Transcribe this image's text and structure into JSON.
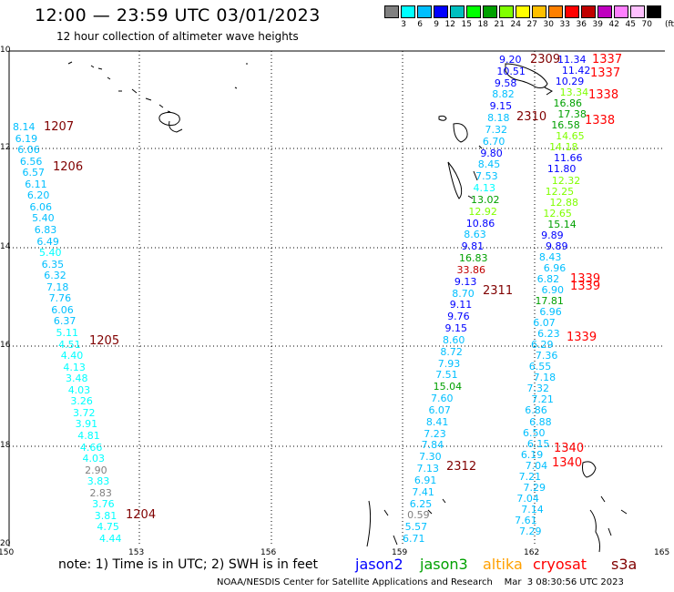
{
  "header": {
    "title": "12:00 — 23:59 UTC 03/01/2023",
    "subtitle": "12 hour collection of altimeter wave heights"
  },
  "color_scale": {
    "labels": [
      "3",
      "6",
      "9",
      "12",
      "15",
      "18",
      "21",
      "24",
      "27",
      "30",
      "33",
      "36",
      "39",
      "42",
      "45",
      "70"
    ],
    "colors": [
      "#808080",
      "#00ffff",
      "#00bfff",
      "#0000ff",
      "#00c0c0",
      "#00ff00",
      "#00a000",
      "#80ff00",
      "#ffff00",
      "#ffc000",
      "#ff8000",
      "#ff0000",
      "#c00000",
      "#c000c0",
      "#ff80ff",
      "#ffc0ff",
      "#000000"
    ],
    "unit": "(ft)"
  },
  "axes": {
    "lat_ticks": [
      "10",
      "12",
      "14",
      "16",
      "18",
      "20"
    ],
    "lon_ticks": [
      "150",
      "153",
      "156",
      "159",
      "162",
      "165"
    ]
  },
  "pass_labels": [
    {
      "text": "1207",
      "color": "#800000"
    },
    {
      "text": "1206",
      "color": "#800000"
    },
    {
      "text": "1205",
      "color": "#800000"
    },
    {
      "text": "1204",
      "color": "#800000"
    },
    {
      "text": "2309",
      "color": "#800000"
    },
    {
      "text": "2310",
      "color": "#800000"
    },
    {
      "text": "2311",
      "color": "#800000"
    },
    {
      "text": "2312",
      "color": "#800000"
    },
    {
      "text": "1337",
      "color": "#ff0000"
    },
    {
      "text": "1337",
      "color": "#ff0000"
    },
    {
      "text": "1338",
      "color": "#ff0000"
    },
    {
      "text": "1338",
      "color": "#ff0000"
    },
    {
      "text": "1339",
      "color": "#ff0000"
    },
    {
      "text": "1339",
      "color": "#ff0000"
    },
    {
      "text": "1339",
      "color": "#ff0000"
    },
    {
      "text": "1340",
      "color": "#ff0000"
    },
    {
      "text": "1340",
      "color": "#ff0000"
    }
  ],
  "track_1204_1207": [
    {
      "v": "8.14",
      "c": "#00bfff"
    },
    {
      "v": "6.19",
      "c": "#00bfff"
    },
    {
      "v": "6.06",
      "c": "#00bfff"
    },
    {
      "v": "6.56",
      "c": "#00bfff"
    },
    {
      "v": "6.57",
      "c": "#00bfff"
    },
    {
      "v": "6.11",
      "c": "#00bfff"
    },
    {
      "v": "6.20",
      "c": "#00bfff"
    },
    {
      "v": "6.06",
      "c": "#00bfff"
    },
    {
      "v": "5.40",
      "c": "#00bfff"
    },
    {
      "v": "6.83",
      "c": "#00bfff"
    },
    {
      "v": "6.49",
      "c": "#00bfff"
    },
    {
      "v": "5.40",
      "c": "#00ffff"
    },
    {
      "v": "6.35",
      "c": "#00bfff"
    },
    {
      "v": "6.32",
      "c": "#00bfff"
    },
    {
      "v": "7.18",
      "c": "#00bfff"
    },
    {
      "v": "7.76",
      "c": "#00bfff"
    },
    {
      "v": "6.06",
      "c": "#00bfff"
    },
    {
      "v": "6.37",
      "c": "#00bfff"
    },
    {
      "v": "5.11",
      "c": "#00ffff"
    },
    {
      "v": "4.51",
      "c": "#00ffff"
    },
    {
      "v": "4.40",
      "c": "#00ffff"
    },
    {
      "v": "4.13",
      "c": "#00ffff"
    },
    {
      "v": "3.48",
      "c": "#00ffff"
    },
    {
      "v": "4.03",
      "c": "#00ffff"
    },
    {
      "v": "3.26",
      "c": "#00ffff"
    },
    {
      "v": "3.72",
      "c": "#00ffff"
    },
    {
      "v": "3.91",
      "c": "#00ffff"
    },
    {
      "v": "4.81",
      "c": "#00ffff"
    },
    {
      "v": "4.66",
      "c": "#00ffff"
    },
    {
      "v": "4.03",
      "c": "#00ffff"
    },
    {
      "v": "2.90",
      "c": "#808080"
    },
    {
      "v": "3.83",
      "c": "#00ffff"
    },
    {
      "v": "2.83",
      "c": "#808080"
    },
    {
      "v": "3.76",
      "c": "#00ffff"
    },
    {
      "v": "3.81",
      "c": "#00ffff"
    },
    {
      "v": "4.75",
      "c": "#00ffff"
    },
    {
      "v": "4.44",
      "c": "#00ffff"
    }
  ],
  "track_2309_2312": [
    {
      "v": "9.20",
      "c": "#0000ff"
    },
    {
      "v": "10.51",
      "c": "#0000ff"
    },
    {
      "v": "9.58",
      "c": "#0000ff"
    },
    {
      "v": "8.82",
      "c": "#00bfff"
    },
    {
      "v": "9.15",
      "c": "#0000ff"
    },
    {
      "v": "8.18",
      "c": "#00bfff"
    },
    {
      "v": "7.32",
      "c": "#00bfff"
    },
    {
      "v": "6.70",
      "c": "#00bfff"
    },
    {
      "v": "9.80",
      "c": "#0000ff"
    },
    {
      "v": "8.45",
      "c": "#00bfff"
    },
    {
      "v": "7.53",
      "c": "#00bfff"
    },
    {
      "v": "4.13",
      "c": "#00ffff"
    },
    {
      "v": "13.02",
      "c": "#00a000"
    },
    {
      "v": "12.92",
      "c": "#80ff00"
    },
    {
      "v": "10.86",
      "c": "#0000ff"
    },
    {
      "v": "8.63",
      "c": "#00bfff"
    },
    {
      "v": "9.81",
      "c": "#0000ff"
    },
    {
      "v": "16.83",
      "c": "#00a000"
    },
    {
      "v": "33.86",
      "c": "#c00000"
    },
    {
      "v": "9.13",
      "c": "#0000ff"
    },
    {
      "v": "8.70",
      "c": "#00bfff"
    },
    {
      "v": "9.11",
      "c": "#0000ff"
    },
    {
      "v": "9.76",
      "c": "#0000ff"
    },
    {
      "v": "9.15",
      "c": "#0000ff"
    },
    {
      "v": "8.60",
      "c": "#00bfff"
    },
    {
      "v": "8.72",
      "c": "#00bfff"
    },
    {
      "v": "7.93",
      "c": "#00bfff"
    },
    {
      "v": "7.51",
      "c": "#00bfff"
    },
    {
      "v": "15.04",
      "c": "#00a000"
    },
    {
      "v": "7.60",
      "c": "#00bfff"
    },
    {
      "v": "6.07",
      "c": "#00bfff"
    },
    {
      "v": "8.41",
      "c": "#00bfff"
    },
    {
      "v": "7.23",
      "c": "#00bfff"
    },
    {
      "v": "7.84",
      "c": "#00bfff"
    },
    {
      "v": "7.30",
      "c": "#00bfff"
    },
    {
      "v": "7.13",
      "c": "#00bfff"
    },
    {
      "v": "6.91",
      "c": "#00bfff"
    },
    {
      "v": "7.41",
      "c": "#00bfff"
    },
    {
      "v": "6.25",
      "c": "#00bfff"
    },
    {
      "v": "0.59",
      "c": "#808080"
    },
    {
      "v": "5.57",
      "c": "#00bfff"
    },
    {
      "v": "6.71",
      "c": "#00bfff"
    }
  ],
  "track_1337_1340": [
    {
      "v": "11.34",
      "c": "#0000ff"
    },
    {
      "v": "11.42",
      "c": "#0000ff"
    },
    {
      "v": "10.29",
      "c": "#0000ff"
    },
    {
      "v": "13.34",
      "c": "#80ff00"
    },
    {
      "v": "16.86",
      "c": "#00a000"
    },
    {
      "v": "17.38",
      "c": "#00a000"
    },
    {
      "v": "16.58",
      "c": "#00a000"
    },
    {
      "v": "14.65",
      "c": "#80ff00"
    },
    {
      "v": "14.18",
      "c": "#80ff00"
    },
    {
      "v": "11.66",
      "c": "#0000ff"
    },
    {
      "v": "11.80",
      "c": "#0000ff"
    },
    {
      "v": "12.32",
      "c": "#80ff00"
    },
    {
      "v": "12.25",
      "c": "#80ff00"
    },
    {
      "v": "12.88",
      "c": "#80ff00"
    },
    {
      "v": "12.65",
      "c": "#80ff00"
    },
    {
      "v": "15.14",
      "c": "#00a000"
    },
    {
      "v": "9.89",
      "c": "#0000ff"
    },
    {
      "v": "9.89",
      "c": "#0000ff"
    },
    {
      "v": "8.43",
      "c": "#00bfff"
    },
    {
      "v": "6.96",
      "c": "#00bfff"
    },
    {
      "v": "6.82",
      "c": "#00bfff"
    },
    {
      "v": "6.90",
      "c": "#00bfff"
    },
    {
      "v": "17.81",
      "c": "#00a000"
    },
    {
      "v": "6.96",
      "c": "#00bfff"
    },
    {
      "v": "6.07",
      "c": "#00bfff"
    },
    {
      "v": "6.23",
      "c": "#00bfff"
    },
    {
      "v": "6.29",
      "c": "#00bfff"
    },
    {
      "v": "7.36",
      "c": "#00bfff"
    },
    {
      "v": "6.55",
      "c": "#00bfff"
    },
    {
      "v": "7.18",
      "c": "#00bfff"
    },
    {
      "v": "7.32",
      "c": "#00bfff"
    },
    {
      "v": "7.21",
      "c": "#00bfff"
    },
    {
      "v": "6.86",
      "c": "#00bfff"
    },
    {
      "v": "6.88",
      "c": "#00bfff"
    },
    {
      "v": "6.50",
      "c": "#00bfff"
    },
    {
      "v": "6.15",
      "c": "#00bfff"
    },
    {
      "v": "6.19",
      "c": "#00bfff"
    },
    {
      "v": "7.04",
      "c": "#00bfff"
    },
    {
      "v": "7.21",
      "c": "#00bfff"
    },
    {
      "v": "7.29",
      "c": "#00bfff"
    },
    {
      "v": "7.04",
      "c": "#00bfff"
    },
    {
      "v": "7.14",
      "c": "#00bfff"
    },
    {
      "v": "7.61",
      "c": "#00bfff"
    },
    {
      "v": "7.29",
      "c": "#00bfff"
    }
  ],
  "footer": {
    "note": "note:  1) Time is in UTC;  2) SWH is in feet",
    "satellites": [
      {
        "name": "jason2",
        "color": "#0000ff"
      },
      {
        "name": "jason3",
        "color": "#00a000"
      },
      {
        "name": "altika",
        "color": "#ffa000"
      },
      {
        "name": "cryosat",
        "color": "#ff0000"
      },
      {
        "name": "s3a",
        "color": "#800000"
      }
    ],
    "credit": "NOAA/NESDIS Center for Satellite Applications and Research    Mar  3 08:30:56 UTC 2023"
  }
}
